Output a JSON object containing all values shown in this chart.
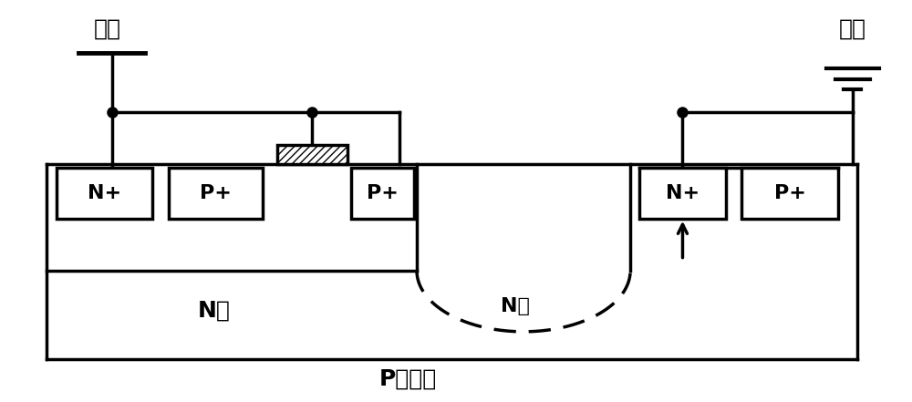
{
  "bg_color": "#ffffff",
  "line_color": "#000000",
  "lw": 2.5,
  "fig_width": 10.0,
  "fig_height": 4.41,
  "anode_label": "阳极",
  "cathode_label": "阴极",
  "n_well_left": "N阱",
  "n_well_right": "N阱",
  "p_sub": "P型衬底",
  "font_size_label": 18,
  "font_size_box": 16
}
